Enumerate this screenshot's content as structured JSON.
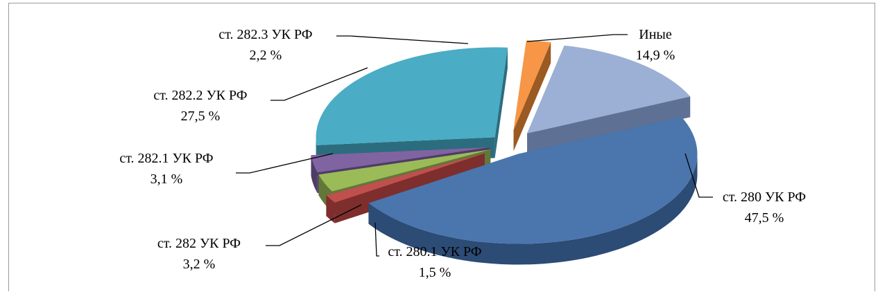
{
  "chart_data": {
    "type": "pie",
    "title": "",
    "slices": [
      {
        "label": "ст. 280 УК РФ",
        "value_text": "47,5 %",
        "value": 47.5,
        "top": "#4A76AD",
        "side": "#2C4B75"
      },
      {
        "label": "ст. 280.1 УК РФ",
        "value_text": "1,5 %",
        "value": 1.5,
        "top": "#C0504D",
        "side": "#7E2E2C"
      },
      {
        "label": "ст. 282 УК РФ",
        "value_text": "3,2 %",
        "value": 3.2,
        "top": "#9BBB59",
        "side": "#627838"
      },
      {
        "label": "ст. 282.1 УК РФ",
        "value_text": "3,1 %",
        "value": 3.1,
        "top": "#8064A2",
        "side": "#4F3C66"
      },
      {
        "label": "ст. 282.2 УК РФ",
        "value_text": "27,5 %",
        "value": 27.5,
        "top": "#4AACC5",
        "side": "#2B6D7E"
      },
      {
        "label": "ст. 282.3 УК РФ",
        "value_text": "2,2 %",
        "value": 2.2,
        "top": "#F79646",
        "side": "#9A5A22"
      },
      {
        "label": "Иные",
        "value_text": "14,9 %",
        "value": 14.9,
        "top": "#9BB0D4",
        "side": "#5E7195"
      }
    ]
  }
}
